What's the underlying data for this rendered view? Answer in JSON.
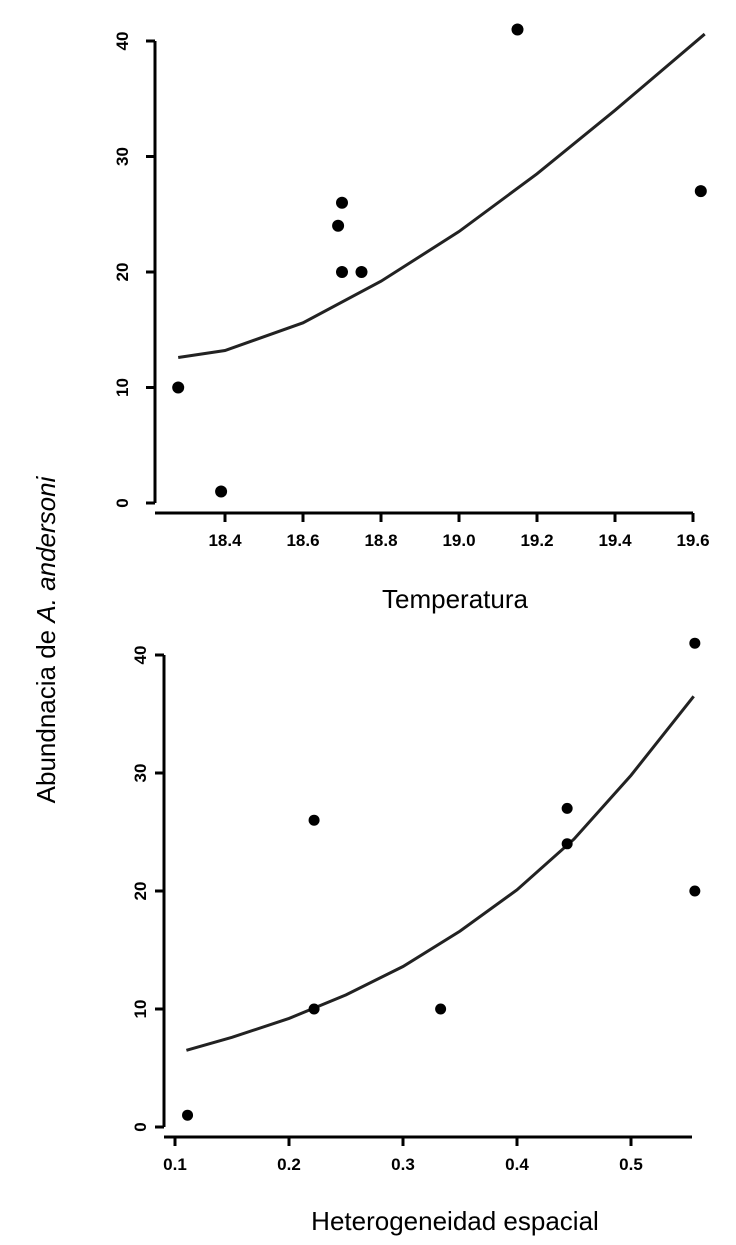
{
  "ylabel_prefix": "Abundnacia de ",
  "ylabel_italic": "A. andersoni",
  "chart_data": [
    {
      "type": "scatter",
      "xlabel": "Temperatura",
      "xlim": [
        18.25,
        19.65
      ],
      "ylim": [
        0,
        41
      ],
      "xticks": [
        "18.4",
        "18.6",
        "18.8",
        "19.0",
        "19.2",
        "19.4",
        "19.6"
      ],
      "yticks": [
        "0",
        "10",
        "20",
        "30",
        "40"
      ],
      "points": [
        [
          18.28,
          10
        ],
        [
          18.39,
          1
        ],
        [
          18.69,
          24
        ],
        [
          18.7,
          26
        ],
        [
          18.7,
          20
        ],
        [
          18.75,
          20
        ],
        [
          19.15,
          41
        ],
        [
          19.62,
          27
        ]
      ],
      "fit": [
        [
          18.28,
          12.6
        ],
        [
          18.4,
          13.2
        ],
        [
          18.6,
          15.6
        ],
        [
          18.8,
          19.2
        ],
        [
          19.0,
          23.5
        ],
        [
          19.2,
          28.5
        ],
        [
          19.4,
          34.0
        ],
        [
          19.63,
          40.6
        ]
      ]
    },
    {
      "type": "scatter",
      "xlabel": "Heterogeneidad espacial",
      "xlim": [
        0.1,
        0.555
      ],
      "ylim": [
        0,
        41
      ],
      "xticks": [
        "0.1",
        "0.2",
        "0.3",
        "0.4",
        "0.5"
      ],
      "yticks": [
        "0",
        "10",
        "20",
        "30",
        "40"
      ],
      "points": [
        [
          0.111,
          1
        ],
        [
          0.222,
          26
        ],
        [
          0.222,
          10
        ],
        [
          0.333,
          10
        ],
        [
          0.444,
          27
        ],
        [
          0.444,
          24
        ],
        [
          0.556,
          41
        ],
        [
          0.556,
          20
        ]
      ],
      "fit": [
        [
          0.11,
          6.5
        ],
        [
          0.15,
          7.6
        ],
        [
          0.2,
          9.2
        ],
        [
          0.25,
          11.2
        ],
        [
          0.3,
          13.6
        ],
        [
          0.35,
          16.6
        ],
        [
          0.4,
          20.1
        ],
        [
          0.45,
          24.4
        ],
        [
          0.5,
          29.8
        ],
        [
          0.555,
          36.5
        ]
      ]
    }
  ]
}
